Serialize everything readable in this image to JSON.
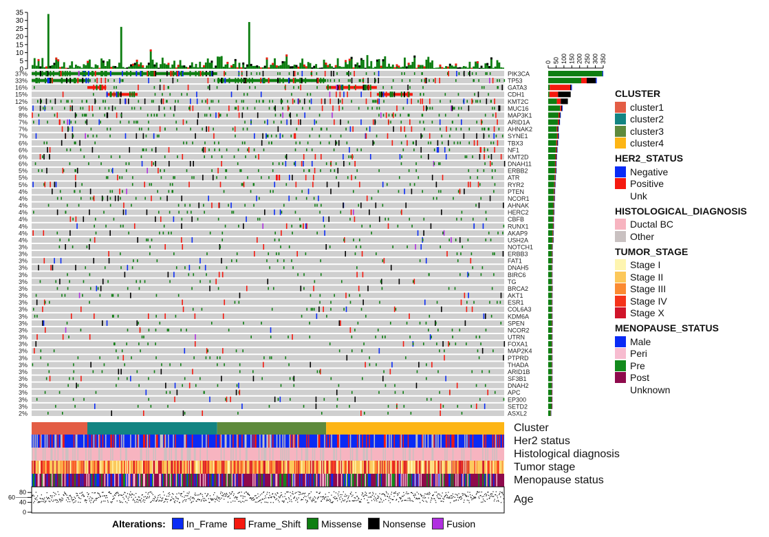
{
  "chart_data": {
    "type": "oncoprint",
    "n_samples": 950,
    "tmb_axis": {
      "ylim": [
        0,
        35
      ],
      "ticks": [
        "0",
        "5",
        "10",
        "15",
        "20",
        "25",
        "30",
        "35"
      ]
    },
    "bar_axis": {
      "xlim": [
        0,
        350
      ],
      "ticks": [
        "0",
        "50",
        "100",
        "150",
        "200",
        "250",
        "300",
        "350"
      ]
    },
    "age_axis": {
      "ylim": [
        0,
        100
      ],
      "ticks": [
        "0",
        "40",
        "60",
        "80"
      ]
    },
    "genes": [
      "PIK3CA",
      "TP53",
      "GATA3",
      "CDH1",
      "KMT2C",
      "MUC16",
      "MAP3K1",
      "ARID1A",
      "AHNAK2",
      "SYNE1",
      "TBX3",
      "NF1",
      "KMT2D",
      "DNAH11",
      "ERBB2",
      "ATR",
      "RYR2",
      "PTEN",
      "NCOR1",
      "AHNAK",
      "HERC2",
      "CBFB",
      "RUNX1",
      "AKAP9",
      "USH2A",
      "NOTCH1",
      "ERBB3",
      "FAT1",
      "DNAH5",
      "BIRC6",
      "TG",
      "BRCA2",
      "AKT1",
      "ESR1",
      "COL6A3",
      "KDM6A",
      "SPEN",
      "NCOR2",
      "UTRN",
      "FOXA1",
      "MAP2K4",
      "PTPRD",
      "THADA",
      "ARID1B",
      "SF3B1",
      "DNAH2",
      "APC",
      "EP300",
      "SETD2",
      "ASXL2"
    ],
    "percents": [
      "37%",
      "33%",
      "16%",
      "15%",
      "12%",
      "9%",
      "8%",
      "7%",
      "7%",
      "7%",
      "6%",
      "6%",
      "6%",
      "6%",
      "5%",
      "5%",
      "5%",
      "4%",
      "4%",
      "4%",
      "4%",
      "4%",
      "4%",
      "4%",
      "4%",
      "3%",
      "3%",
      "3%",
      "3%",
      "3%",
      "3%",
      "3%",
      "3%",
      "3%",
      "3%",
      "3%",
      "3%",
      "3%",
      "3%",
      "3%",
      "3%",
      "3%",
      "3%",
      "3%",
      "3%",
      "3%",
      "3%",
      "3%",
      "3%",
      "2%"
    ],
    "totals": [
      350,
      309,
      151,
      143,
      125,
      92,
      80,
      75,
      66,
      69,
      63,
      59,
      56,
      53,
      53,
      49,
      47,
      44,
      43,
      40,
      40,
      37,
      37,
      34,
      34,
      29,
      29,
      29,
      28,
      28,
      28,
      29,
      28,
      28,
      28,
      28,
      29,
      28,
      28,
      28,
      27,
      28,
      28,
      28,
      28,
      28,
      27,
      27,
      27,
      20
    ],
    "breakdown_top": {
      "PIK3CA": {
        "Missense": 345,
        "In_Frame": 5
      },
      "TP53": {
        "Missense": 210,
        "Frame_Shift": 35,
        "Nonsense": 58,
        "In_Frame": 6
      },
      "GATA3": {
        "Missense": 10,
        "Frame_Shift": 130,
        "Nonsense": 6,
        "In_Frame": 5
      },
      "CDH1": {
        "Missense": 8,
        "Frame_Shift": 55,
        "Nonsense": 80
      },
      "KMT2C": {
        "Missense": 55,
        "Frame_Shift": 25,
        "Nonsense": 45
      }
    },
    "blocks": [
      {
        "gene": "PIK3CA",
        "start": 0,
        "end": 373,
        "type": "Missense"
      },
      {
        "gene": "TP53",
        "start": 0,
        "end": 113,
        "type": "Missense"
      },
      {
        "gene": "TP53",
        "start": 373,
        "end": 592,
        "type": "Missense"
      },
      {
        "gene": "GATA3",
        "start": 112,
        "end": 150,
        "type": "Frame_Shift"
      },
      {
        "gene": "GATA3",
        "start": 592,
        "end": 694,
        "type": "Frame_Shift"
      },
      {
        "gene": "CDH1",
        "start": 150,
        "end": 213,
        "type": "Frame_Shift"
      },
      {
        "gene": "CDH1",
        "start": 694,
        "end": 766,
        "type": "Frame_Shift"
      }
    ],
    "clusters": [
      {
        "name": "cluster1",
        "start": 0,
        "end": 112
      },
      {
        "name": "cluster2",
        "start": 112,
        "end": 373
      },
      {
        "name": "cluster3",
        "start": 373,
        "end": 592
      },
      {
        "name": "cluster4",
        "start": 592,
        "end": 950
      }
    ]
  },
  "tracks": {
    "cluster": "Cluster",
    "her2": "Her2 status",
    "hist": "Histological diagnosis",
    "tumor": "Tumor stage",
    "meno": "Menopause status",
    "age": "Age"
  },
  "legend": {
    "cluster": {
      "title": "CLUSTER",
      "items": [
        {
          "label": "cluster1",
          "color": "#E35D45"
        },
        {
          "label": "cluster2",
          "color": "#138482"
        },
        {
          "label": "cluster3",
          "color": "#5E8A3C"
        },
        {
          "label": "cluster4",
          "color": "#FDB515"
        }
      ]
    },
    "her2": {
      "title": "HER2_STATUS",
      "items": [
        {
          "label": "Negative",
          "color": "#0A2BF5"
        },
        {
          "label": "Positive",
          "color": "#F5190F"
        },
        {
          "label": "Unk",
          "color": ""
        }
      ]
    },
    "hist": {
      "title": "HISTOLOGICAL_DIAGNOSIS",
      "items": [
        {
          "label": "Ductal BC",
          "color": "#F7B4C0"
        },
        {
          "label": "Other",
          "color": "#C9C1C1"
        }
      ]
    },
    "tumor": {
      "title": "TUMOR_STAGE",
      "items": [
        {
          "label": "Stage I",
          "color": "#FEF5B0"
        },
        {
          "label": "Stage II",
          "color": "#FCC85A"
        },
        {
          "label": "Stage III",
          "color": "#FB8A32"
        },
        {
          "label": "Stage IV",
          "color": "#F5331A"
        },
        {
          "label": "Stage X",
          "color": "#D0142A"
        }
      ]
    },
    "meno": {
      "title": "MENOPAUSE_STATUS",
      "items": [
        {
          "label": "Male",
          "color": "#0A2BF5"
        },
        {
          "label": "Peri",
          "color": "#F7BCD0"
        },
        {
          "label": "Pre",
          "color": "#128A1C"
        },
        {
          "label": "Post",
          "color": "#8E0A4C"
        },
        {
          "label": "Unknown",
          "color": ""
        }
      ]
    }
  },
  "alterations": {
    "title": "Alterations:",
    "items": [
      {
        "label": "In_Frame",
        "color": "#0A2BF5"
      },
      {
        "label": "Frame_Shift",
        "color": "#F5190F"
      },
      {
        "label": "Missense",
        "color": "#0E7E12"
      },
      {
        "label": "Nonsense",
        "color": "#000000"
      },
      {
        "label": "Fusion",
        "color": "#B030E0"
      }
    ]
  }
}
